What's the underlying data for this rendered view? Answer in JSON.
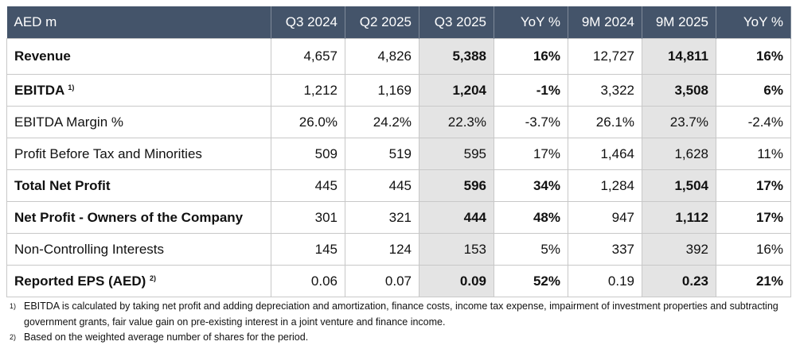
{
  "header": [
    "AED m",
    "Q3 2024",
    "Q2 2025",
    "Q3 2025",
    "YoY %",
    "9M 2024",
    "9M 2025",
    "YoY %"
  ],
  "colors": {
    "header_bg": "#44546a",
    "highlight_col": "#e4e4e4"
  },
  "rows": [
    {
      "label": "Revenue",
      "sup": "",
      "bold": true,
      "values": [
        "4,657",
        "4,826",
        "5,388",
        "16%",
        "12,727",
        "14,811",
        "16%"
      ]
    },
    {
      "label": "EBITDA",
      "sup": "1)",
      "bold": true,
      "values": [
        "1,212",
        "1,169",
        "1,204",
        "-1%",
        "3,322",
        "3,508",
        "6%"
      ]
    },
    {
      "label": "EBITDA Margin %",
      "sup": "",
      "bold": false,
      "values": [
        "26.0%",
        "24.2%",
        "22.3%",
        "-3.7%",
        "26.1%",
        "23.7%",
        "-2.4%"
      ]
    },
    {
      "label": "Profit Before Tax and Minorities",
      "sup": "",
      "bold": false,
      "values": [
        "509",
        "519",
        "595",
        "17%",
        "1,464",
        "1,628",
        "11%"
      ]
    },
    {
      "label": "Total Net Profit",
      "sup": "",
      "bold": true,
      "values": [
        "445",
        "445",
        "596",
        "34%",
        "1,284",
        "1,504",
        "17%"
      ]
    },
    {
      "label": "Net Profit - Owners of the Company",
      "sup": "",
      "bold": true,
      "values": [
        "301",
        "321",
        "444",
        "48%",
        "947",
        "1,112",
        "17%"
      ]
    },
    {
      "label": "Non-Controlling Interests",
      "sup": "",
      "bold": false,
      "values": [
        "145",
        "124",
        "153",
        "5%",
        "337",
        "392",
        "16%"
      ]
    },
    {
      "label": "Reported EPS (AED)",
      "sup": "2)",
      "bold": true,
      "values": [
        "0.06",
        "0.07",
        "0.09",
        "52%",
        "0.19",
        "0.23",
        "21%"
      ]
    }
  ],
  "footnotes": [
    {
      "num": "1)",
      "text": "EBITDA is calculated by taking net profit and adding depreciation and amortization, finance costs, income tax expense, impairment of investment properties and subtracting government grants, fair value gain on pre-existing interest in a joint venture and finance income."
    },
    {
      "num": "2)",
      "text": "Based on the weighted average number of shares for the period."
    }
  ]
}
